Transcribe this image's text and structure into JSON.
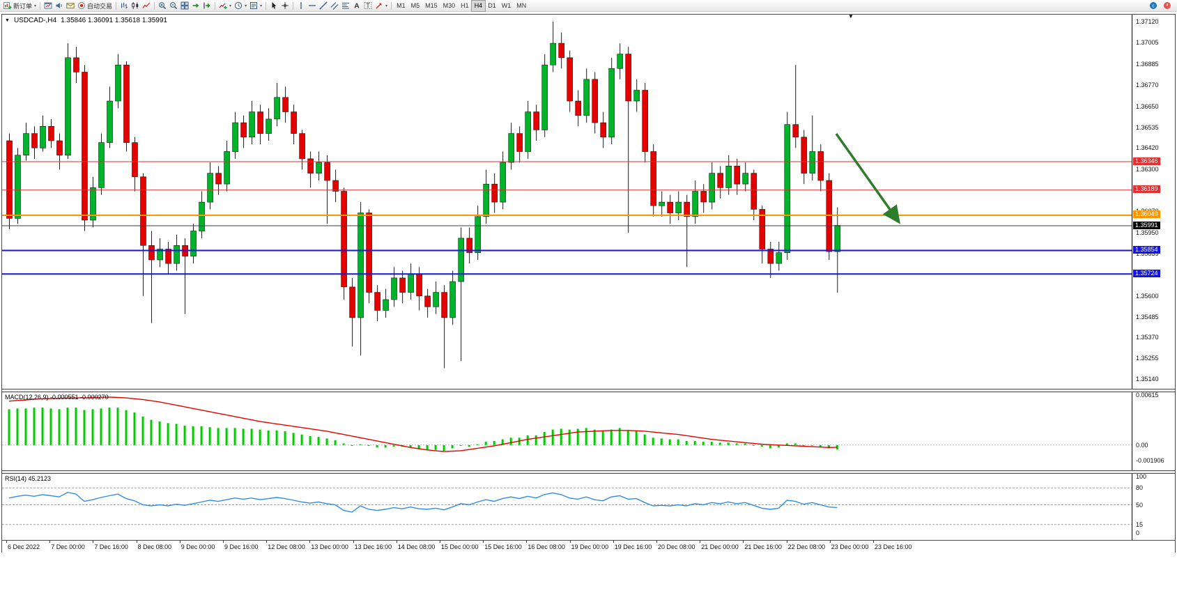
{
  "toolbar": {
    "groups": [
      [
        {
          "name": "new-order-button",
          "icon": "new-order-icon",
          "label": "新订单",
          "caret": true
        }
      ],
      [
        {
          "name": "profiles-button",
          "icon": "chart-window-icon"
        },
        {
          "name": "sound-button",
          "icon": "speaker-icon"
        },
        {
          "name": "news-button",
          "icon": "news-icon"
        },
        {
          "name": "auto-trading-button",
          "icon": "autotrade-icon",
          "label": "自动交易"
        }
      ],
      [
        {
          "name": "bar-chart-button",
          "icon": "bar-chart-icon"
        },
        {
          "name": "candlestick-chart-button",
          "icon": "candlestick-icon"
        },
        {
          "name": "line-chart-button",
          "icon": "line-chart-icon"
        }
      ],
      [
        {
          "name": "zoom-in-button",
          "icon": "zoom-in-icon"
        },
        {
          "name": "zoom-out-button",
          "icon": "zoom-out-icon"
        },
        {
          "name": "tile-windows-button",
          "icon": "tile-windows-icon"
        },
        {
          "name": "auto-scroll-button",
          "icon": "auto-scroll-icon"
        },
        {
          "name": "chart-shift-button",
          "icon": "chart-shift-icon"
        }
      ],
      [
        {
          "name": "indicators-button",
          "icon": "indicators-icon",
          "caret": true
        },
        {
          "name": "periods-button",
          "icon": "clock-icon",
          "caret": true
        },
        {
          "name": "templates-button",
          "icon": "template-icon",
          "caret": true
        }
      ],
      [
        {
          "name": "cursor-button",
          "icon": "cursor-icon"
        },
        {
          "name": "crosshair-button",
          "icon": "crosshair-icon"
        }
      ],
      [
        {
          "name": "vertical-line-button",
          "icon": "vertical-line-icon"
        },
        {
          "name": "horizontal-line-button",
          "icon": "horizontal-line-icon"
        },
        {
          "name": "trendline-button",
          "icon": "trendline-icon"
        },
        {
          "name": "channel-button",
          "icon": "channel-icon"
        },
        {
          "name": "fibonacci-button",
          "icon": "fibonacci-icon"
        },
        {
          "name": "text-button",
          "icon": "text-icon"
        },
        {
          "name": "label-button",
          "icon": "label-icon"
        },
        {
          "name": "arrows-button",
          "icon": "arrow-icon",
          "caret": true
        }
      ]
    ],
    "timeframes": {
      "options": [
        "M1",
        "M5",
        "M15",
        "M30",
        "H1",
        "H4",
        "D1",
        "W1",
        "MN"
      ],
      "active": "H4"
    },
    "right_buttons": [
      {
        "name": "community-button",
        "icon": "chat-icon"
      },
      {
        "name": "connection-status-button",
        "icon": "status-icon"
      }
    ]
  },
  "chart": {
    "symbol_period": "USDCAD-,H4",
    "ohlc_text": "1.35846 1.36091 1.35618 1.35991"
  },
  "chart_data": {
    "type": "candlestick",
    "symbol": "USDCAD-,H4",
    "colors": {
      "up": "#00b22c",
      "down": "#e30202",
      "wick": "#1a1a1a",
      "outline": "#1a1a1a",
      "macd_hist": "#00cc00",
      "macd_signal": "#e30202",
      "rsi_line": "#2f8de4",
      "arrow": "#2d7d2d",
      "bid": "#3c3c3c"
    },
    "price_axis": {
      "min": 1.3514,
      "max": 1.3712,
      "ticks": [
        1.3712,
        1.37005,
        1.36885,
        1.3677,
        1.3665,
        1.36535,
        1.3642,
        1.363,
        1.36185,
        1.3607,
        1.3595,
        1.35835,
        1.3572,
        1.356,
        1.35485,
        1.3537,
        1.35255,
        1.3514
      ]
    },
    "hlines": [
      {
        "price": 1.36346,
        "label": "1.36346",
        "color": "#e03030",
        "width": 1
      },
      {
        "price": 1.36189,
        "label": "1.36189",
        "color": "#e03030",
        "width": 1
      },
      {
        "price": 1.36049,
        "label": "1.36049",
        "color": "#ff9500",
        "width": 2
      },
      {
        "price": 1.35854,
        "label": "1.35854",
        "color": "#1414e0",
        "width": 2
      },
      {
        "price": 1.35724,
        "label": "1.35724",
        "color": "#1414e0",
        "width": 2
      }
    ],
    "bid": {
      "price": 1.35991,
      "label": "1.35991"
    },
    "arrow": {
      "x1_frac": 0.738,
      "price1": 1.365,
      "x2_frac": 0.792,
      "price2": 1.3602
    },
    "time_labels": [
      "6 Dec 2022",
      "7 Dec 00:00",
      "7 Dec 16:00",
      "8 Dec 08:00",
      "9 Dec 00:00",
      "9 Dec 16:00",
      "12 Dec 08:00",
      "13 Dec 00:00",
      "13 Dec 16:00",
      "14 Dec 08:00",
      "15 Dec 00:00",
      "15 Dec 16:00",
      "16 Dec 08:00",
      "19 Dec 00:00",
      "19 Dec 16:00",
      "20 Dec 08:00",
      "21 Dec 00:00",
      "21 Dec 16:00",
      "22 Dec 08:00",
      "23 Dec 00:00",
      "23 Dec 16:00"
    ],
    "ohlc": [
      [
        1.3646,
        1.365,
        1.3597,
        1.3603
      ],
      [
        1.3603,
        1.3642,
        1.36,
        1.3638
      ],
      [
        1.3638,
        1.3656,
        1.3635,
        1.365
      ],
      [
        1.365,
        1.3654,
        1.3636,
        1.3642
      ],
      [
        1.3642,
        1.366,
        1.364,
        1.3654
      ],
      [
        1.3654,
        1.3658,
        1.3642,
        1.3646
      ],
      [
        1.3646,
        1.365,
        1.363,
        1.3638
      ],
      [
        1.3638,
        1.37,
        1.3636,
        1.3692
      ],
      [
        1.3692,
        1.3698,
        1.3678,
        1.3684
      ],
      [
        1.3684,
        1.3688,
        1.3596,
        1.3602
      ],
      [
        1.3602,
        1.3626,
        1.3598,
        1.362
      ],
      [
        1.362,
        1.365,
        1.3616,
        1.3645
      ],
      [
        1.3645,
        1.3676,
        1.3642,
        1.3668
      ],
      [
        1.3668,
        1.3694,
        1.3664,
        1.3688
      ],
      [
        1.3688,
        1.369,
        1.364,
        1.3645
      ],
      [
        1.3645,
        1.3648,
        1.3618,
        1.3626
      ],
      [
        1.3626,
        1.3628,
        1.356,
        1.3588
      ],
      [
        1.3588,
        1.3596,
        1.3545,
        1.358
      ],
      [
        1.358,
        1.3592,
        1.3576,
        1.3586
      ],
      [
        1.3586,
        1.359,
        1.3572,
        1.3578
      ],
      [
        1.3578,
        1.3594,
        1.3574,
        1.3588
      ],
      [
        1.3588,
        1.3592,
        1.355,
        1.3582
      ],
      [
        1.3582,
        1.36,
        1.3578,
        1.3596
      ],
      [
        1.3596,
        1.3618,
        1.3592,
        1.3612
      ],
      [
        1.3612,
        1.3634,
        1.3608,
        1.3628
      ],
      [
        1.3628,
        1.3632,
        1.3616,
        1.3622
      ],
      [
        1.3622,
        1.3646,
        1.3618,
        1.364
      ],
      [
        1.364,
        1.3662,
        1.3636,
        1.3656
      ],
      [
        1.3656,
        1.366,
        1.3642,
        1.3648
      ],
      [
        1.3648,
        1.3668,
        1.3644,
        1.3662
      ],
      [
        1.3662,
        1.3666,
        1.3644,
        1.365
      ],
      [
        1.365,
        1.3664,
        1.3646,
        1.3658
      ],
      [
        1.3658,
        1.3678,
        1.3654,
        1.367
      ],
      [
        1.367,
        1.3676,
        1.3656,
        1.3662
      ],
      [
        1.3662,
        1.3666,
        1.3644,
        1.365
      ],
      [
        1.365,
        1.3652,
        1.363,
        1.3636
      ],
      [
        1.3636,
        1.364,
        1.362,
        1.3628
      ],
      [
        1.3628,
        1.364,
        1.3624,
        1.3634
      ],
      [
        1.3634,
        1.3638,
        1.36,
        1.3624
      ],
      [
        1.3624,
        1.363,
        1.3612,
        1.3618
      ],
      [
        1.3618,
        1.362,
        1.3558,
        1.3565
      ],
      [
        1.3565,
        1.357,
        1.3532,
        1.3548
      ],
      [
        1.3548,
        1.3612,
        1.3527,
        1.3606
      ],
      [
        1.3606,
        1.3608,
        1.3556,
        1.3562
      ],
      [
        1.3562,
        1.3566,
        1.3546,
        1.3552
      ],
      [
        1.3552,
        1.3564,
        1.3548,
        1.3558
      ],
      [
        1.3558,
        1.3576,
        1.3554,
        1.357
      ],
      [
        1.357,
        1.3574,
        1.3556,
        1.3562
      ],
      [
        1.3562,
        1.3578,
        1.3558,
        1.3572
      ],
      [
        1.3572,
        1.3576,
        1.3552,
        1.356
      ],
      [
        1.356,
        1.3564,
        1.3548,
        1.3554
      ],
      [
        1.3554,
        1.3568,
        1.355,
        1.3562
      ],
      [
        1.3562,
        1.3566,
        1.352,
        1.3548
      ],
      [
        1.3548,
        1.3574,
        1.3544,
        1.3568
      ],
      [
        1.3568,
        1.3598,
        1.3524,
        1.3592
      ],
      [
        1.3592,
        1.3598,
        1.3578,
        1.3584
      ],
      [
        1.3584,
        1.361,
        1.358,
        1.3604
      ],
      [
        1.3604,
        1.363,
        1.36,
        1.3622
      ],
      [
        1.3622,
        1.3628,
        1.3606,
        1.3612
      ],
      [
        1.3612,
        1.364,
        1.3608,
        1.3634
      ],
      [
        1.3634,
        1.3656,
        1.363,
        1.365
      ],
      [
        1.365,
        1.3654,
        1.3634,
        1.364
      ],
      [
        1.364,
        1.3668,
        1.3636,
        1.3662
      ],
      [
        1.3662,
        1.3666,
        1.3646,
        1.3652
      ],
      [
        1.3652,
        1.3694,
        1.3648,
        1.3688
      ],
      [
        1.3688,
        1.3712,
        1.3684,
        1.37
      ],
      [
        1.37,
        1.3706,
        1.3686,
        1.3692
      ],
      [
        1.3692,
        1.3696,
        1.3662,
        1.3668
      ],
      [
        1.3668,
        1.3674,
        1.3654,
        1.366
      ],
      [
        1.366,
        1.3686,
        1.3656,
        1.368
      ],
      [
        1.368,
        1.3684,
        1.365,
        1.3656
      ],
      [
        1.3656,
        1.3662,
        1.3642,
        1.3648
      ],
      [
        1.3648,
        1.3692,
        1.3644,
        1.3686
      ],
      [
        1.3686,
        1.37,
        1.368,
        1.3694
      ],
      [
        1.3694,
        1.3698,
        1.3595,
        1.3668
      ],
      [
        1.3668,
        1.368,
        1.3662,
        1.3674
      ],
      [
        1.3674,
        1.3678,
        1.3634,
        1.364
      ],
      [
        1.364,
        1.3644,
        1.3604,
        1.361
      ],
      [
        1.361,
        1.3618,
        1.3604,
        1.3612
      ],
      [
        1.3612,
        1.3616,
        1.36,
        1.3606
      ],
      [
        1.3606,
        1.3618,
        1.3602,
        1.3612
      ],
      [
        1.3612,
        1.3616,
        1.3576,
        1.3604
      ],
      [
        1.3604,
        1.3624,
        1.36,
        1.3618
      ],
      [
        1.3618,
        1.3622,
        1.3606,
        1.3612
      ],
      [
        1.3612,
        1.3634,
        1.3608,
        1.3628
      ],
      [
        1.3628,
        1.3632,
        1.3614,
        1.362
      ],
      [
        1.362,
        1.3638,
        1.3616,
        1.3632
      ],
      [
        1.3632,
        1.3636,
        1.3616,
        1.3622
      ],
      [
        1.3622,
        1.3634,
        1.3618,
        1.3628
      ],
      [
        1.3628,
        1.363,
        1.3602,
        1.3608
      ],
      [
        1.3608,
        1.361,
        1.3578,
        1.3586
      ],
      [
        1.3586,
        1.359,
        1.357,
        1.3578
      ],
      [
        1.3578,
        1.359,
        1.3574,
        1.3584
      ],
      [
        1.3584,
        1.3662,
        1.358,
        1.3655
      ],
      [
        1.3655,
        1.3688,
        1.3642,
        1.3648
      ],
      [
        1.3648,
        1.3652,
        1.3622,
        1.3628
      ],
      [
        1.3628,
        1.366,
        1.3624,
        1.364
      ],
      [
        1.364,
        1.3644,
        1.3618,
        1.3624
      ],
      [
        1.3624,
        1.3628,
        1.358,
        1.35846
      ],
      [
        1.35846,
        1.36091,
        1.35618,
        1.35991
      ]
    ],
    "macd": {
      "label": "MACD(12,26,9) -0.000551 -0.000270",
      "value": -0.000551,
      "signal_value": -0.00027,
      "max": 0.00615,
      "min": -0.001906,
      "axis_labels": [
        {
          "value": 0.00615,
          "text": "0.00615"
        },
        {
          "value": 0,
          "text": "0.00"
        },
        {
          "value": -0.001906,
          "text": "-0.001906"
        }
      ],
      "hist": [
        0.0044,
        0.0045,
        0.0045,
        0.0046,
        0.0046,
        0.0045,
        0.0044,
        0.0046,
        0.0046,
        0.0043,
        0.0044,
        0.0045,
        0.0046,
        0.0046,
        0.0043,
        0.004,
        0.0035,
        0.0031,
        0.0029,
        0.0027,
        0.0026,
        0.0024,
        0.0023,
        0.0023,
        0.0022,
        0.0021,
        0.0021,
        0.0021,
        0.002,
        0.002,
        0.0019,
        0.0018,
        0.0018,
        0.0017,
        0.0015,
        0.0013,
        0.0011,
        0.001,
        0.0008,
        0.0006,
        0.0002,
        -0.0001,
        0.0001,
        -0.0001,
        -0.0003,
        -0.0003,
        -0.0002,
        -0.0002,
        -0.0003,
        -0.0005,
        -0.0006,
        -0.0006,
        -0.0007,
        -0.0004,
        -0.0001,
        -0.0002,
        0.0001,
        0.0004,
        0.0005,
        0.0007,
        0.0009,
        0.0009,
        0.0012,
        0.0012,
        0.0016,
        0.0019,
        0.002,
        0.0019,
        0.002,
        0.0021,
        0.0019,
        0.0017,
        0.0019,
        0.0021,
        0.0018,
        0.0017,
        0.0013,
        0.0009,
        0.0008,
        0.0007,
        0.0007,
        0.0005,
        0.0005,
        0.0004,
        0.0004,
        0.0003,
        0.0003,
        0.0002,
        0.0002,
        0.0,
        -0.0002,
        -0.0004,
        -0.0003,
        0.0002,
        0.0002,
        0.0,
        0.0,
        -0.0002,
        -0.0004,
        -0.000551
      ],
      "signal": [
        0.0054,
        0.00548,
        0.00555,
        0.00563,
        0.0057,
        0.00572,
        0.00575,
        0.00578,
        0.0058,
        0.00582,
        0.00585,
        0.00588,
        0.0059,
        0.00585,
        0.0058,
        0.0057,
        0.0056,
        0.00545,
        0.0053,
        0.0051,
        0.0049,
        0.0047,
        0.0045,
        0.0043,
        0.0041,
        0.0039,
        0.0037,
        0.0035,
        0.0033,
        0.0031,
        0.0029,
        0.00275,
        0.0026,
        0.00245,
        0.0023,
        0.00215,
        0.002,
        0.00185,
        0.0017,
        0.0015,
        0.0013,
        0.0011,
        0.0009,
        0.0007,
        0.0005,
        0.0003,
        0.0001,
        -0.0001,
        -0.0003,
        -0.00045,
        -0.0006,
        -0.0007,
        -0.0008,
        -0.00075,
        -0.0007,
        -0.00055,
        -0.0004,
        -0.00025,
        -0.0001,
        0.0001,
        0.0003,
        0.0005,
        0.0007,
        0.00085,
        0.001,
        0.00115,
        0.0013,
        0.00145,
        0.0016,
        0.00165,
        0.0017,
        0.00175,
        0.0018,
        0.0018,
        0.0018,
        0.00175,
        0.0017,
        0.0016,
        0.0015,
        0.0014,
        0.0013,
        0.00115,
        0.001,
        0.00085,
        0.0007,
        0.0006,
        0.0005,
        0.0004,
        0.0003,
        0.0002,
        0.0001,
        5e-05,
        0,
        -5e-05,
        -0.0001,
        -0.00015,
        -0.0002,
        -0.00025,
        -0.0003,
        -0.00027
      ]
    },
    "rsi": {
      "label": "RSI(14) 45.2123",
      "value": 45.2123,
      "levels": [
        80,
        50,
        15
      ],
      "axis_labels": [
        {
          "value": 100,
          "text": "100"
        },
        {
          "value": 80,
          "text": "80"
        },
        {
          "value": 50,
          "text": "50"
        },
        {
          "value": 15,
          "text": "15"
        },
        {
          "value": 0,
          "text": "0"
        }
      ],
      "values": [
        62,
        65,
        67,
        65,
        68,
        66,
        64,
        72,
        69,
        56,
        59,
        63,
        66,
        69,
        61,
        57,
        50,
        48,
        50,
        48,
        51,
        49,
        52,
        55,
        58,
        56,
        59,
        62,
        60,
        62,
        59,
        61,
        63,
        61,
        58,
        55,
        53,
        55,
        52,
        50,
        40,
        37,
        48,
        42,
        40,
        42,
        45,
        43,
        46,
        43,
        42,
        44,
        41,
        46,
        52,
        50,
        55,
        59,
        56,
        61,
        64,
        61,
        65,
        62,
        68,
        71,
        68,
        62,
        60,
        64,
        59,
        57,
        64,
        66,
        60,
        61,
        54,
        48,
        49,
        48,
        50,
        48,
        52,
        50,
        54,
        52,
        55,
        52,
        54,
        49,
        44,
        42,
        44,
        58,
        56,
        51,
        54,
        50,
        46,
        45.2
      ]
    }
  }
}
